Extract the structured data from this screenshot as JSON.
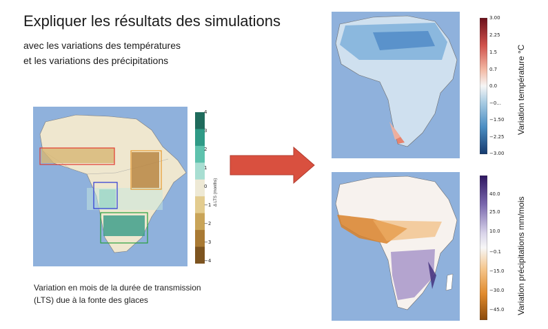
{
  "slide": {
    "title": "Expliquer les résultats des simulations",
    "subtitle_line1": "avec les variations des températures",
    "subtitle_line2": "et les variations des précipitations",
    "caption_line1": "Variation en mois de la durée de transmission",
    "caption_line2": "(LTS) due à la fonte des glaces"
  },
  "lts_map": {
    "colorbar_label": "Δ LTS (months)",
    "ticks": [
      "4",
      "3",
      "2",
      "1",
      "0",
      "−1",
      "−2",
      "−3",
      "−4"
    ],
    "colors": [
      "#1f6b5c",
      "#2f9a86",
      "#5ec2ad",
      "#a8ded2",
      "#eee9d5",
      "#e3cc8f",
      "#c9a458",
      "#a97a34",
      "#7d5420"
    ]
  },
  "temp_map": {
    "colorbar_label": "Variation température °C",
    "ticks": [
      "3.00",
      "2.25",
      "1.5",
      "0.7",
      "0.0",
      "−0...",
      "−1.50",
      "−2.25",
      "−3.00"
    ]
  },
  "precip_map": {
    "colorbar_label": "Variation précipitations mm/mois",
    "ticks": [
      "40.0",
      "25.0",
      "10.0",
      "−0.1",
      "−15.0",
      "−30.0",
      "−45.0"
    ]
  },
  "colors": {
    "arrow": "#d9503f",
    "ocean": "#8fb1dc"
  }
}
